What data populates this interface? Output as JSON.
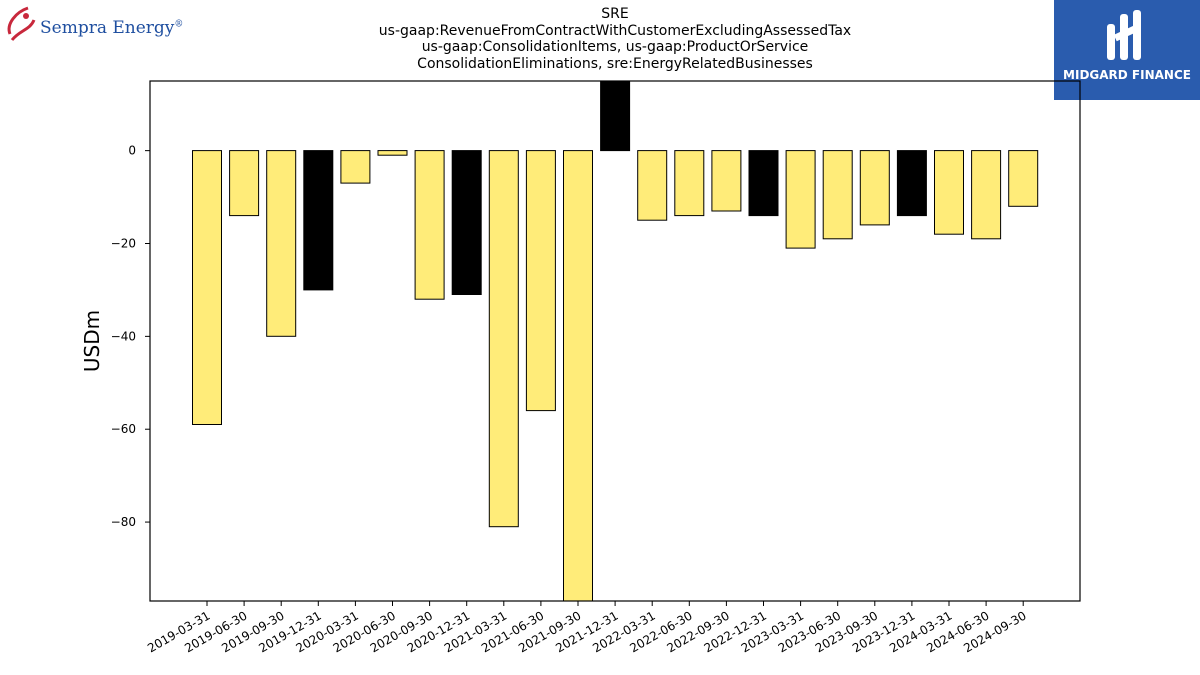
{
  "header": {
    "title_lines": [
      "SRE",
      "us-gaap:RevenueFromContractWithCustomerExcludingAssessedTax",
      "us-gaap:ConsolidationItems, us-gaap:ProductOrService",
      "ConsolidationEliminations, sre:EnergyRelatedBusinesses"
    ]
  },
  "brand_left": {
    "name": "Sempra Energy",
    "mark": "®",
    "icon": "sempra-swirl-logo-icon",
    "color": "#1f4fa0"
  },
  "brand_right": {
    "name": "MIDGARD FINANCE",
    "icon": "midgard-m-logo-icon",
    "background": "#2a5cae"
  },
  "chart_data": {
    "type": "bar",
    "title": "SRE",
    "subtitle": "us-gaap:RevenueFromContractWithCustomerExcludingAssessedTax us-gaap:ConsolidationItems, us-gaap:ProductOrService ConsolidationEliminations, sre:EnergyRelatedBusinesses",
    "xlabel": "",
    "ylabel": "USDm",
    "categories": [
      "2019-03-31",
      "2019-06-30",
      "2019-09-30",
      "2019-12-31",
      "2020-03-31",
      "2020-06-30",
      "2020-09-30",
      "2020-12-31",
      "2021-03-31",
      "2021-06-30",
      "2021-09-30",
      "2021-12-31",
      "2022-03-31",
      "2022-06-30",
      "2022-09-30",
      "2022-12-31",
      "2023-03-31",
      "2023-06-30",
      "2023-09-30",
      "2023-12-31",
      "2024-03-31",
      "2024-06-30",
      "2024-09-30"
    ],
    "values": [
      -59,
      -14,
      -40,
      -30,
      -7,
      -1,
      -32,
      -31,
      -81,
      -56,
      -97,
      15,
      -15,
      -14,
      -13,
      -14,
      -21,
      -19,
      -16,
      -14,
      -18,
      -19,
      -12
    ],
    "bar_colors": [
      "#ffec79",
      "#ffec79",
      "#ffec79",
      "#000000",
      "#ffec79",
      "#ffec79",
      "#ffec79",
      "#000000",
      "#ffec79",
      "#ffec79",
      "#ffec79",
      "#000000",
      "#ffec79",
      "#ffec79",
      "#ffec79",
      "#000000",
      "#ffec79",
      "#ffec79",
      "#ffec79",
      "#000000",
      "#ffec79",
      "#ffec79",
      "#ffec79"
    ],
    "ylim": [
      -97,
      15
    ],
    "yticks": [
      0,
      -20,
      -40,
      -60,
      -80
    ],
    "ytick_labels": [
      "0",
      "−20",
      "−40",
      "−60",
      "−80"
    ],
    "grid": false,
    "legend": "none"
  }
}
